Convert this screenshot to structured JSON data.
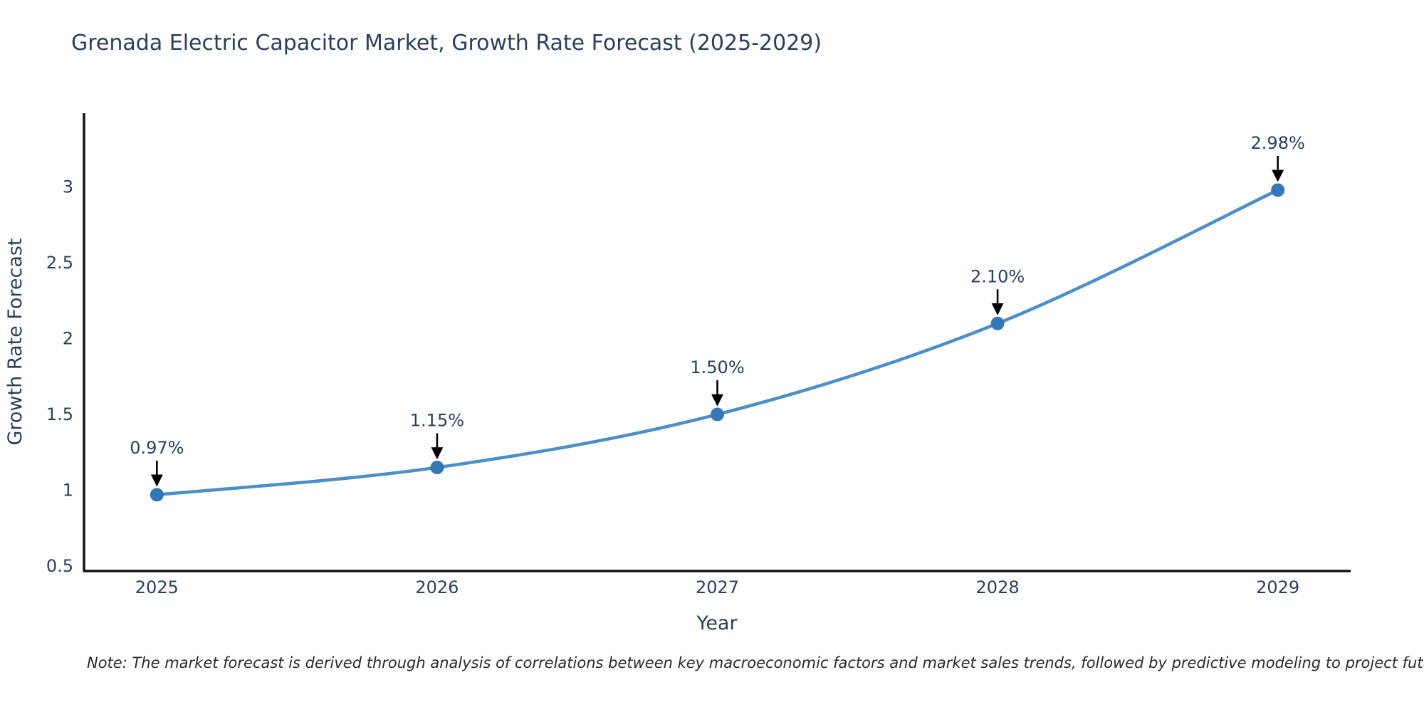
{
  "title": "Grenada Electric Capacitor Market, Growth Rate Forecast (2025-2029)",
  "note": "Note: The market forecast is derived through analysis of correlations between key macroeconomic factors and market sales trends, followed by predictive modeling to project future sales",
  "chart_data": {
    "type": "line",
    "title": "Grenada Electric Capacitor Market, Growth Rate Forecast (2025-2029)",
    "xlabel": "Year",
    "ylabel": "Growth Rate Forecast",
    "x": [
      2025,
      2026,
      2027,
      2028,
      2029
    ],
    "series": [
      {
        "name": "Growth Rate Forecast",
        "values": [
          0.97,
          1.15,
          1.5,
          2.1,
          2.98
        ]
      }
    ],
    "point_labels": [
      "0.97%",
      "1.15%",
      "1.50%",
      "2.10%",
      "2.98%"
    ],
    "xticks": [
      "2025",
      "2026",
      "2027",
      "2028",
      "2029"
    ],
    "yticks": [
      0.5,
      1,
      1.5,
      2,
      2.5,
      3
    ],
    "xlim": [
      2024.74,
      2029.26
    ],
    "ylim": [
      0.467,
      3.487
    ],
    "grid": false,
    "legend": "none",
    "smooth_line": true,
    "annotation_style": "value label with downward black arrow to marker",
    "colors": {
      "line": "#4a8fc7",
      "marker": "#3377b6",
      "axis": "#111111",
      "text": "#2a3f5f",
      "arrow": "#000000",
      "background": "#ffffff"
    }
  }
}
